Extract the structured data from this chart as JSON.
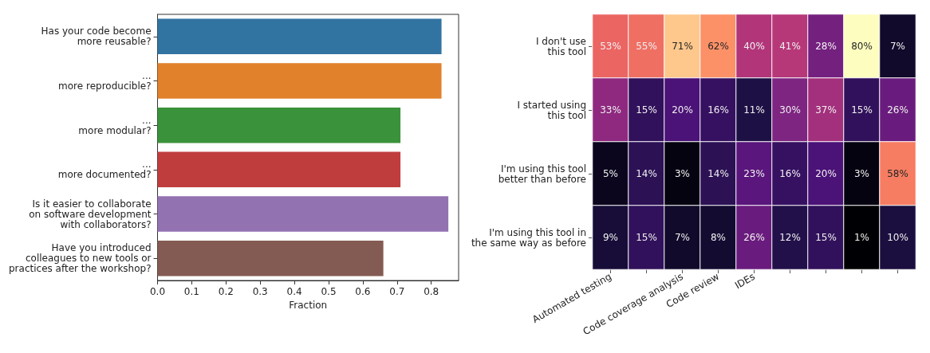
{
  "chart_data": [
    {
      "type": "bar",
      "orientation": "horizontal",
      "xlabel": "Fraction",
      "categories": [
        "Has your code become\nmore reusable?",
        "...\nmore reproducible?",
        "...\nmore modular?",
        "...\nmore documented?",
        "Is it easier to collaborate\non software development\nwith collaborators?",
        "Have you introduced\ncolleagues to new tools or\npractices after the workshop?"
      ],
      "values": [
        0.83,
        0.83,
        0.71,
        0.71,
        0.85,
        0.66
      ],
      "colors": [
        "#3274a1",
        "#e1812c",
        "#3a923a",
        "#c03d3e",
        "#9372b2",
        "#845b53"
      ],
      "xlim": [
        0,
        0.88
      ],
      "xticks": [
        {
          "value": 0,
          "label": "0.0"
        },
        {
          "value": 0.1,
          "label": "0.1"
        },
        {
          "value": 0.2,
          "label": "0.2"
        },
        {
          "value": 0.3,
          "label": "0.3"
        },
        {
          "value": 0.4,
          "label": "0.4"
        },
        {
          "value": 0.5,
          "label": "0.5"
        },
        {
          "value": 0.6,
          "label": "0.6"
        },
        {
          "value": 0.7,
          "label": "0.7"
        },
        {
          "value": 0.8,
          "label": "0.8"
        }
      ],
      "grid": false
    },
    {
      "type": "heatmap",
      "categories": [
        "Automated testing",
        null,
        "Code coverage analysis",
        "Code review",
        "IDEs",
        null,
        null,
        null,
        null
      ],
      "y_categories": [
        "I don't use\nthis tool",
        "I started using\nthis tool",
        "I'm using this tool\nbetter than before",
        "I'm using this tool in\nthe same way as before"
      ],
      "cells": [
        [
          53,
          55,
          71,
          62,
          40,
          41,
          28,
          80,
          7
        ],
        [
          33,
          15,
          20,
          16,
          11,
          30,
          37,
          15,
          26
        ],
        [
          5,
          14,
          3,
          14,
          23,
          16,
          20,
          3,
          58
        ],
        [
          9,
          15,
          7,
          8,
          26,
          12,
          15,
          1,
          10
        ]
      ],
      "cell_labels": [
        [
          "53%",
          "55%",
          "71%",
          "62%",
          "40%",
          "41%",
          "28%",
          "80%",
          "7%"
        ],
        [
          "33%",
          "15%",
          "20%",
          "16%",
          "11%",
          "30%",
          "37%",
          "15%",
          "26%"
        ],
        [
          "5%",
          "14%",
          "3%",
          "14%",
          "23%",
          "16%",
          "20%",
          "3%",
          "58%"
        ],
        [
          "9%",
          "15%",
          "7%",
          "8%",
          "26%",
          "12%",
          "15%",
          "1%",
          "10%"
        ]
      ]
    }
  ]
}
